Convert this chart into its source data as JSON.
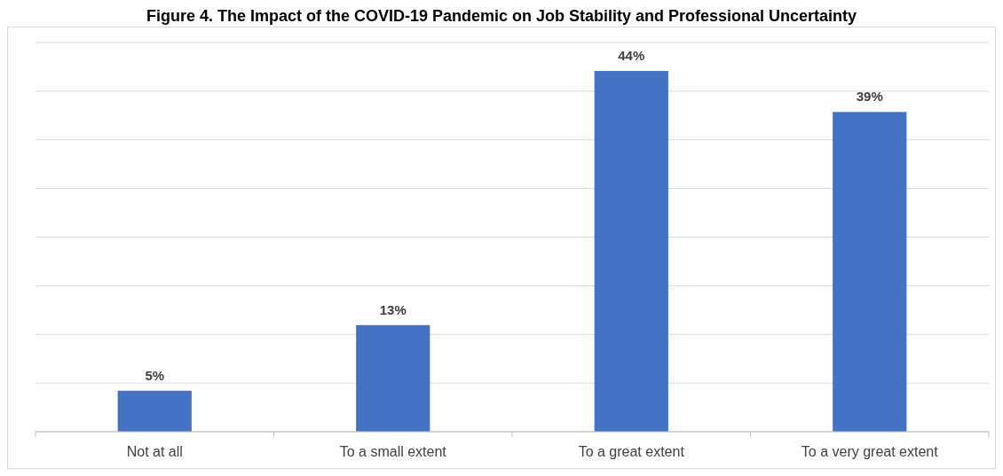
{
  "chart_data": {
    "type": "bar",
    "title": "Figure 4. The Impact of the COVID-19 Pandemic on Job Stability and Professional Uncertainty",
    "categories": [
      "Not at all",
      "To a small extent",
      "To a great extent",
      "To a very great extent"
    ],
    "values": [
      5,
      13,
      44,
      39
    ],
    "color": "#4472c4",
    "value_labels": [
      "5%",
      "13%",
      "44%",
      "39%"
    ],
    "grid": "y",
    "tick_labels": "x"
  }
}
